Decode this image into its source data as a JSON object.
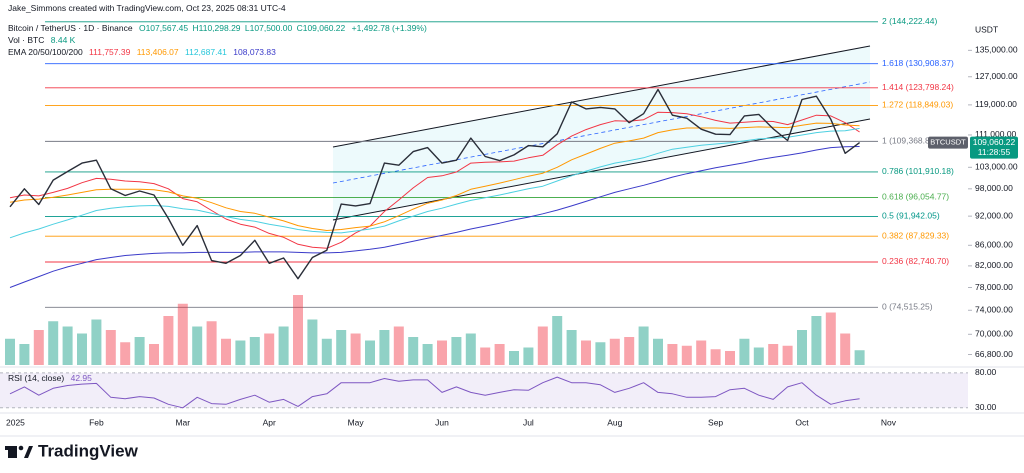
{
  "header": {
    "credit": "Jake_Simmons created with TradingView.com, Oct 23, 2025 08:31 UTC-4",
    "symbol": "Bitcoin / TetherUS · 1D · Binance",
    "ohlc": [
      "O107,567.45",
      "H110,298.29",
      "L107,500.00",
      "C109,060.22"
    ],
    "change": "+1,492.78 (+1.39%)"
  },
  "footer": {
    "brand": "TradingView"
  },
  "chart_data": {
    "type": "line",
    "log_scale": true,
    "currency": "USDT",
    "ylim": [
      65200,
      146500
    ],
    "yticks": [
      {
        "value": 135000,
        "label": "135,000.00"
      },
      {
        "value": 127000,
        "label": "127,000.00"
      },
      {
        "value": 119000,
        "label": "119,000.00"
      },
      {
        "value": 111000,
        "label": "111,000.00"
      },
      {
        "value": 103000,
        "label": "103,000.00"
      },
      {
        "value": 98000,
        "label": "98,000.00"
      },
      {
        "value": 92000,
        "label": "92,000.00"
      },
      {
        "value": 86000,
        "label": "86,000.00"
      },
      {
        "value": 82000,
        "label": "82,000.00"
      },
      {
        "value": 78000,
        "label": "78,000.00"
      },
      {
        "value": 74000,
        "label": "74,000.00"
      },
      {
        "value": 70000,
        "label": "70,000.00"
      },
      {
        "value": 66800,
        "label": "66,800.00"
      }
    ],
    "categories": [
      "2025",
      null,
      null,
      null,
      null,
      null,
      "Feb",
      null,
      null,
      null,
      null,
      null,
      "Mar",
      null,
      null,
      null,
      null,
      null,
      "Apr",
      null,
      null,
      null,
      null,
      null,
      "May",
      null,
      null,
      null,
      null,
      null,
      "Jun",
      null,
      null,
      null,
      null,
      null,
      "Jul",
      null,
      null,
      null,
      null,
      null,
      "Aug",
      null,
      null,
      null,
      null,
      null,
      null,
      "Sep",
      null,
      null,
      null,
      null,
      null,
      "Oct",
      null,
      null,
      null,
      null,
      null,
      "Nov",
      null,
      null,
      null,
      null,
      null
    ],
    "series": [
      {
        "color": "#2a2e39",
        "values": [
          94000,
          98000,
          94500,
          100000,
          102000,
          104000,
          104700,
          98000,
          96500,
          97500,
          96600,
          91500,
          86000,
          90000,
          83000,
          82500,
          84000,
          87000,
          82500,
          83500,
          79600,
          83600,
          85000,
          94600,
          94200,
          94700,
          104000,
          103500,
          106800,
          107800,
          104000,
          104700,
          110200,
          105600,
          104600,
          106000,
          108300,
          108000,
          111300,
          119800,
          117900,
          118300,
          117900,
          114200,
          116600,
          123300,
          116200,
          115400,
          112500,
          111200,
          111100,
          116000,
          116400,
          112600,
          109600,
          120500,
          121400,
          115100,
          106400,
          109060.22,
          null,
          null,
          null,
          null,
          null,
          null,
          null
        ]
      }
    ],
    "ema": {
      "name": "EMA 20/50/100/200",
      "series": [
        {
          "color": "#f23645",
          "legend_value": "111,757.39",
          "values": [
            96000,
            96600,
            96400,
            97200,
            98100,
            99400,
            100400,
            100200,
            99800,
            99600,
            99200,
            98000,
            95800,
            95100,
            93200,
            91400,
            90300,
            89700,
            88400,
            87600,
            86200,
            85600,
            85400,
            86600,
            88500,
            89900,
            93000,
            95500,
            98200,
            100600,
            101000,
            101900,
            104000,
            104200,
            104300,
            104500,
            105300,
            105900,
            108500,
            110700,
            112400,
            113700,
            114700,
            114600,
            115000,
            117000,
            116900,
            116600,
            115800,
            114800,
            114100,
            114300,
            114600,
            114500,
            113700,
            114900,
            116200,
            116000,
            114200,
            111757.39,
            null,
            null,
            null,
            null,
            null,
            null,
            null
          ]
        },
        {
          "color": "#ff9800",
          "legend_value": "113,406.07",
          "values": [
            95000,
            95500,
            95700,
            96100,
            96600,
            97200,
            97800,
            97900,
            97900,
            97900,
            97800,
            97300,
            96400,
            95900,
            94900,
            93800,
            93000,
            92600,
            91800,
            91000,
            90000,
            89400,
            89000,
            89200,
            89600,
            89900,
            90800,
            92100,
            93500,
            94800,
            95500,
            96500,
            97900,
            98600,
            99300,
            100100,
            100900,
            101600,
            103000,
            104800,
            106200,
            107600,
            108900,
            109500,
            110200,
            111600,
            112300,
            112800,
            112800,
            112800,
            112700,
            112900,
            113100,
            113000,
            112900,
            113500,
            114100,
            114000,
            113600,
            113406.07,
            null,
            null,
            null,
            null,
            null,
            null,
            null
          ]
        },
        {
          "color": "#4dd0e1",
          "legend_value": "112,687.41",
          "values": [
            87500,
            88500,
            89300,
            90300,
            91200,
            92200,
            93200,
            93700,
            94000,
            94200,
            94300,
            94100,
            93600,
            93300,
            92600,
            91900,
            91300,
            90900,
            90300,
            89800,
            89200,
            88800,
            88600,
            88500,
            88900,
            89300,
            89900,
            91000,
            92000,
            93000,
            93700,
            94600,
            95400,
            96000,
            96600,
            97300,
            98000,
            98600,
            99800,
            101000,
            102100,
            103100,
            104000,
            104600,
            105300,
            106400,
            107400,
            107900,
            108400,
            108700,
            109000,
            109500,
            110000,
            110200,
            110400,
            111000,
            111600,
            112000,
            112100,
            112687.41,
            null,
            null,
            null,
            null,
            null,
            null,
            null
          ]
        },
        {
          "color": "#3b3bc9",
          "legend_value": "108,073.83",
          "values": [
            78000,
            79000,
            80000,
            81000,
            81800,
            82500,
            83200,
            83600,
            84000,
            84200,
            84400,
            84500,
            84500,
            84600,
            84600,
            84600,
            84600,
            84700,
            84700,
            84700,
            84600,
            84500,
            84500,
            84600,
            84900,
            85200,
            85600,
            86200,
            86800,
            87400,
            88000,
            88600,
            89300,
            89900,
            90500,
            91200,
            91800,
            92500,
            93300,
            94200,
            95200,
            96200,
            97200,
            98000,
            98800,
            99700,
            100700,
            101500,
            102200,
            102900,
            103500,
            104100,
            104800,
            105400,
            105900,
            106500,
            107200,
            107800,
            108000,
            108073.83,
            null,
            null,
            null,
            null,
            null,
            null,
            null
          ]
        }
      ]
    },
    "fib_levels": [
      {
        "label": "2 (144,222.44)",
        "value": 144222.44,
        "color": "#089981"
      },
      {
        "label": "1.618 (130,908.37)",
        "value": 130908.37,
        "color": "#2962ff"
      },
      {
        "label": "1.414 (123,798.24)",
        "value": 123798.24,
        "color": "#f23645"
      },
      {
        "label": "1.272 (118,849.03)",
        "value": 118849.03,
        "color": "#ff9800"
      },
      {
        "label": "1 (109,368.8",
        "value": 109368.8,
        "color": "#787b86"
      },
      {
        "label": "0.786 (101,910.18)",
        "value": 101910.18,
        "color": "#089981"
      },
      {
        "label": "0.618 (96,054.77)",
        "value": 96054.77,
        "color": "#4caf50"
      },
      {
        "label": "0.5 (91,942.05)",
        "value": 91942.05,
        "color": "#009688"
      },
      {
        "label": "0.382 (87,829.33)",
        "value": 87829.33,
        "color": "#ff9800"
      },
      {
        "label": "0.236 (82,740.70)",
        "value": 82740.7,
        "color": "#f23645"
      },
      {
        "label": "0 (74,515.25)",
        "value": 74515.25,
        "color": "#787b86"
      }
    ],
    "price_tag": {
      "symbol": "BTCUSDT",
      "value": 109060.22,
      "label": "109,060.22",
      "countdown": "11:28:55",
      "color": "#089981"
    },
    "volume": {
      "name": "Vol · BTC",
      "value_label": "8.44 K",
      "ylim": [
        0,
        200
      ],
      "up_color": "rgba(8,153,129,0.45)",
      "down_color": "rgba(242,54,69,0.45)",
      "values": [
        15,
        12,
        20,
        25,
        22,
        18,
        26,
        20,
        13,
        16,
        12,
        28,
        35,
        22,
        25,
        15,
        14,
        16,
        18,
        22,
        40,
        26,
        15,
        20,
        18,
        14,
        20,
        22,
        16,
        12,
        14,
        16,
        18,
        10,
        12,
        8,
        10,
        22,
        28,
        20,
        14,
        13,
        15,
        16,
        22,
        15,
        12,
        11,
        14,
        9,
        8,
        15,
        10,
        12,
        11,
        20,
        28,
        30,
        18,
        8.44,
        null,
        null,
        null,
        null,
        null,
        null,
        null
      ]
    },
    "rsi": {
      "title": "RSI (14, close)",
      "value_label": "42.95",
      "color": "#7e57c2",
      "ylim": [
        24,
        87
      ],
      "yticks": [
        {
          "value": 80,
          "label": "80.00"
        },
        {
          "value": 30,
          "label": "30.00"
        }
      ],
      "values": [
        50,
        60,
        48,
        58,
        62,
        64,
        65,
        45,
        43,
        46,
        44,
        35,
        30,
        45,
        36,
        35,
        42,
        48,
        38,
        42,
        32,
        46,
        50,
        66,
        66,
        66,
        72,
        68,
        70,
        70,
        52,
        60,
        52,
        48,
        52,
        56,
        55,
        66,
        74,
        66,
        66,
        63,
        52,
        58,
        66,
        52,
        50,
        45,
        45,
        46,
        56,
        58,
        48,
        42,
        60,
        66,
        48,
        35,
        40,
        42.95,
        null,
        null,
        null,
        null,
        null,
        null,
        null
      ]
    }
  }
}
